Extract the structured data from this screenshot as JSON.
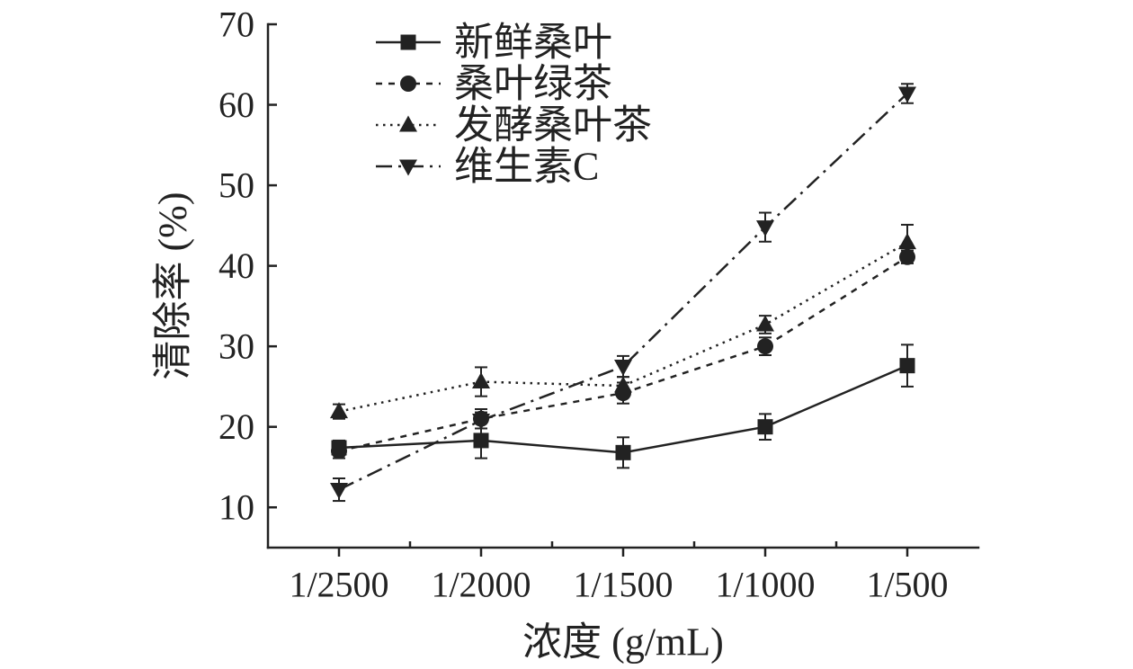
{
  "chart_data": {
    "type": "line",
    "xlabel": "浓度 (g/mL)",
    "ylabel": "清除率 (%)",
    "categories": [
      "1/2500",
      "1/2000",
      "1/1500",
      "1/1000",
      "1/500"
    ],
    "ylim": [
      5,
      70
    ],
    "yticks": [
      10,
      20,
      30,
      40,
      50,
      60,
      70
    ],
    "grid": false,
    "legend": "top-left",
    "error_bars": true,
    "color": "#222222",
    "series": [
      {
        "name": "新鲜桑叶",
        "line": "solid",
        "marker": "square",
        "values": [
          17.4,
          18.3,
          16.8,
          20.0,
          27.6
        ],
        "errors": [
          0.9,
          2.2,
          1.9,
          1.6,
          2.6
        ]
      },
      {
        "name": "桑叶绿茶",
        "line": "dashed",
        "marker": "circle",
        "values": [
          17.0,
          21.0,
          24.2,
          30.0,
          41.1
        ],
        "errors": [
          0.9,
          1.2,
          1.3,
          1.1,
          0.8
        ]
      },
      {
        "name": "发酵桑叶茶",
        "line": "dotted",
        "marker": "triangle-up",
        "values": [
          21.9,
          25.6,
          25.1,
          32.7,
          42.9
        ],
        "errors": [
          0.9,
          1.8,
          1.1,
          1.1,
          2.2
        ]
      },
      {
        "name": "维生素C",
        "line": "dash-dot",
        "marker": "triangle-down",
        "values": [
          12.2,
          20.8,
          27.5,
          44.8,
          61.4
        ],
        "errors": [
          1.4,
          1.0,
          1.3,
          1.8,
          1.2
        ]
      }
    ]
  }
}
